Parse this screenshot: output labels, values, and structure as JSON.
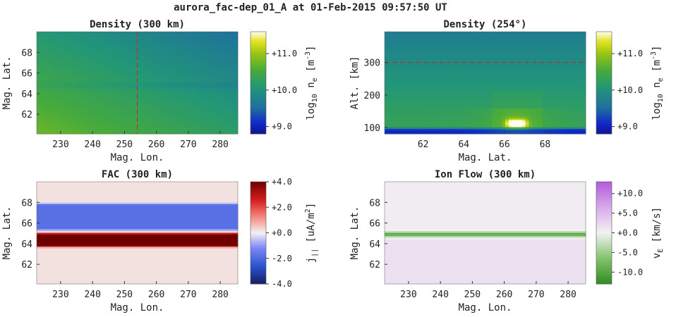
{
  "figure_title": "aurora_fac-dep_01_A at 01-Feb-2015 09:57:50 UT",
  "chart_data": [
    {
      "type": "heatmap",
      "title": "Density (300 km)",
      "xlabel": "Mag. Lon.",
      "ylabel": "Mag. Lat.",
      "xlim": [
        222.5,
        285.5
      ],
      "ylim": [
        60.1,
        70.0
      ],
      "xticks": [
        230,
        240,
        250,
        260,
        270,
        280
      ],
      "yticks": [
        62,
        64,
        66,
        68
      ],
      "reference_line": {
        "orientation": "vertical",
        "x": 254,
        "color": "#cc2222",
        "style": "dashed"
      },
      "field_description": "log10 ne increases toward low latitude/low longitude with a thin darker band near 64.8",
      "colormap": "viridis-like",
      "colorbar": {
        "label": "log10 ne [m^-3]",
        "label_parts": [
          "log",
          "10",
          " n",
          "e",
          " [m",
          "-3",
          "]"
        ],
        "range": [
          8.8,
          11.6
        ],
        "ticks": [
          "+9.0",
          "+10.0",
          "+11.0"
        ],
        "tick_values": [
          9.0,
          10.0,
          11.0
        ]
      }
    },
    {
      "type": "heatmap",
      "title": "Density (254°)",
      "xlabel": "Mag. Lat.",
      "ylabel": "Alt. [km]",
      "xlim": [
        60.1,
        70.0
      ],
      "ylim": [
        80,
        395
      ],
      "xticks": [
        62,
        64,
        66,
        68
      ],
      "yticks": [
        100,
        200,
        300
      ],
      "reference_line": {
        "orientation": "horizontal",
        "y": 300,
        "color": "#cc2222",
        "style": "dashed"
      },
      "field_description": "dense low-altitude layer with bright enhancement between 65.6 and 67.6 latitude below ~130 km",
      "colormap": "viridis-like",
      "colorbar": {
        "label": "log10 ne [m^-3]",
        "label_parts": [
          "log",
          "10",
          " n",
          "e",
          " [m",
          "-3",
          "]"
        ],
        "range": [
          8.8,
          11.6
        ],
        "ticks": [
          "+9.0",
          "+10.0",
          "+11.0"
        ],
        "tick_values": [
          9.0,
          10.0,
          11.0
        ]
      }
    },
    {
      "type": "heatmap",
      "title": "FAC (300 km)",
      "xlabel": "Mag. Lon.",
      "ylabel": "Mag. Lat.",
      "xlim": [
        222.5,
        285.5
      ],
      "ylim": [
        60.1,
        70.0
      ],
      "xticks": [
        230,
        240,
        250,
        260,
        270,
        280
      ],
      "yticks": [
        62,
        64,
        66,
        68
      ],
      "bands": [
        {
          "lat_min": 65.3,
          "lat_max": 67.9,
          "value": -1.8
        },
        {
          "lat_min": 63.7,
          "lat_max": 65.0,
          "value": 4.0
        }
      ],
      "background_value": 0.2,
      "colormap": "diverging-blue-red",
      "colorbar": {
        "label": "j|| [uA/m^2]",
        "label_parts": [
          "j",
          "||",
          " [uA/m",
          "2",
          "]"
        ],
        "range": [
          -4.0,
          4.0
        ],
        "ticks": [
          "+4.0",
          "+2.0",
          "+0.0",
          "-2.0",
          "-4.0"
        ],
        "tick_values": [
          4.0,
          2.0,
          0.0,
          -2.0,
          -4.0
        ]
      }
    },
    {
      "type": "heatmap",
      "title": "Ion Flow (300 km)",
      "xlabel": "Mag. Lon.",
      "ylabel": "Mag. Lat.",
      "xlim": [
        222.5,
        285.5
      ],
      "ylim": [
        60.1,
        70.0
      ],
      "xticks": [
        230,
        240,
        250,
        260,
        270,
        280
      ],
      "yticks": [
        62,
        64,
        66,
        68
      ],
      "bands": [
        {
          "lat_center": 64.9,
          "half_width": 0.35,
          "value": -10.0
        }
      ],
      "background_value": 0.5,
      "low_lat_value": 1.5,
      "colormap": "diverging-green-purple",
      "colorbar": {
        "label": "vE [km/s]",
        "label_parts": [
          "v",
          "E",
          " [km/s]"
        ],
        "range": [
          -13.0,
          13.0
        ],
        "ticks": [
          "+10.0",
          "+5.0",
          "+0.0",
          "-5.0",
          "-10.0"
        ],
        "tick_values": [
          10.0,
          5.0,
          0.0,
          -5.0,
          -10.0
        ]
      }
    }
  ]
}
